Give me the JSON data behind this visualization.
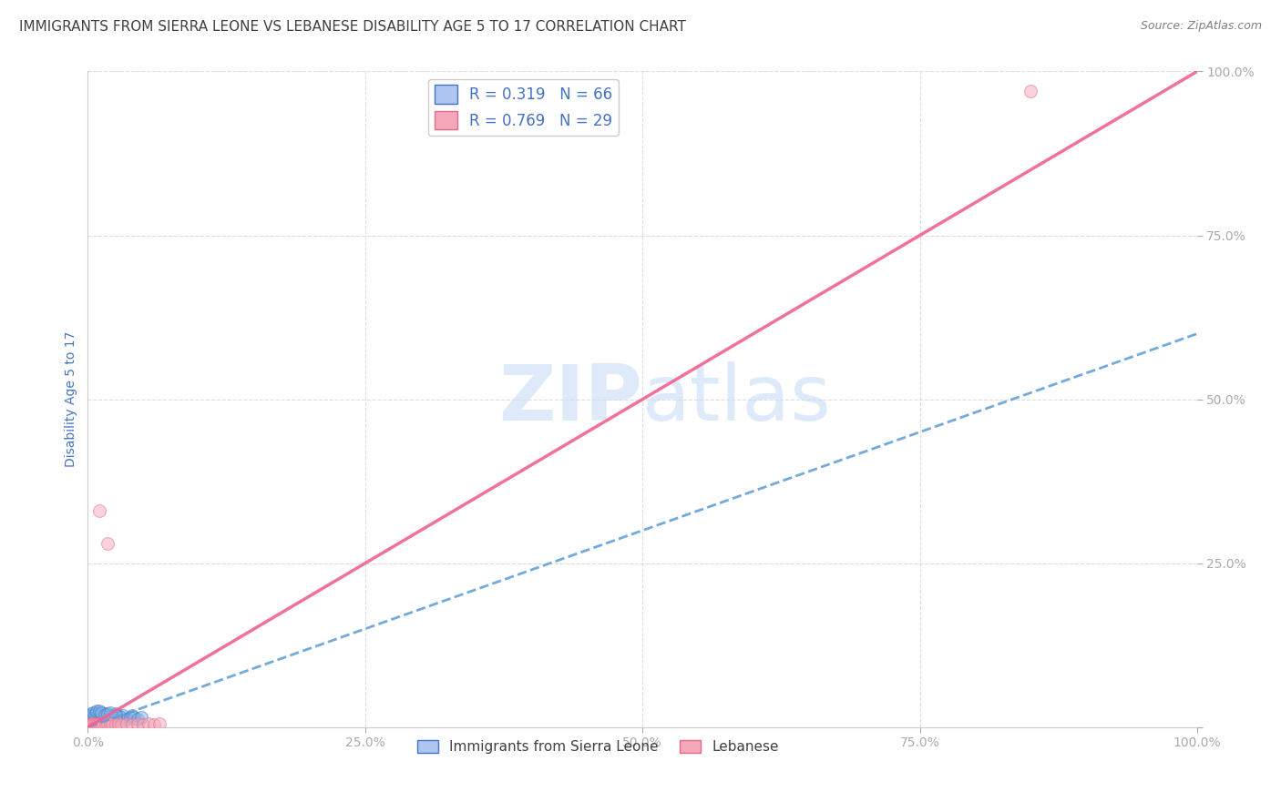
{
  "title": "IMMIGRANTS FROM SIERRA LEONE VS LEBANESE DISABILITY AGE 5 TO 17 CORRELATION CHART",
  "source": "Source: ZipAtlas.com",
  "ylabel": "Disability Age 5 to 17",
  "xlim": [
    0,
    1.0
  ],
  "ylim": [
    0,
    1.0
  ],
  "xticks": [
    0.0,
    0.25,
    0.5,
    0.75,
    1.0
  ],
  "yticks": [
    0.0,
    0.25,
    0.5,
    0.75,
    1.0
  ],
  "xticklabels": [
    "0.0%",
    "25.0%",
    "50.0%",
    "75.0%",
    "100.0%"
  ],
  "yticklabels": [
    "",
    "25.0%",
    "50.0%",
    "75.0%",
    "100.0%"
  ],
  "watermark": "ZIPatlas",
  "sierra_leone_points": [
    [
      0.001,
      0.005
    ],
    [
      0.001,
      0.008
    ],
    [
      0.001,
      0.012
    ],
    [
      0.001,
      0.015
    ],
    [
      0.002,
      0.003
    ],
    [
      0.002,
      0.008
    ],
    [
      0.002,
      0.012
    ],
    [
      0.002,
      0.018
    ],
    [
      0.003,
      0.005
    ],
    [
      0.003,
      0.01
    ],
    [
      0.003,
      0.015
    ],
    [
      0.003,
      0.02
    ],
    [
      0.004,
      0.008
    ],
    [
      0.004,
      0.012
    ],
    [
      0.004,
      0.018
    ],
    [
      0.005,
      0.005
    ],
    [
      0.005,
      0.01
    ],
    [
      0.005,
      0.015
    ],
    [
      0.006,
      0.008
    ],
    [
      0.006,
      0.012
    ],
    [
      0.006,
      0.018
    ],
    [
      0.007,
      0.01
    ],
    [
      0.007,
      0.015
    ],
    [
      0.007,
      0.02
    ],
    [
      0.008,
      0.008
    ],
    [
      0.008,
      0.015
    ],
    [
      0.008,
      0.022
    ],
    [
      0.009,
      0.01
    ],
    [
      0.009,
      0.018
    ],
    [
      0.01,
      0.005
    ],
    [
      0.01,
      0.012
    ],
    [
      0.01,
      0.02
    ],
    [
      0.012,
      0.008
    ],
    [
      0.012,
      0.015
    ],
    [
      0.013,
      0.012
    ],
    [
      0.013,
      0.018
    ],
    [
      0.015,
      0.01
    ],
    [
      0.015,
      0.02
    ],
    [
      0.016,
      0.008
    ],
    [
      0.016,
      0.015
    ],
    [
      0.018,
      0.012
    ],
    [
      0.018,
      0.018
    ],
    [
      0.02,
      0.01
    ],
    [
      0.02,
      0.015
    ],
    [
      0.022,
      0.012
    ],
    [
      0.022,
      0.018
    ],
    [
      0.025,
      0.015
    ],
    [
      0.025,
      0.02
    ],
    [
      0.028,
      0.012
    ],
    [
      0.028,
      0.018
    ],
    [
      0.03,
      0.015
    ],
    [
      0.032,
      0.018
    ],
    [
      0.035,
      0.012
    ],
    [
      0.038,
      0.015
    ],
    [
      0.04,
      0.018
    ],
    [
      0.042,
      0.015
    ],
    [
      0.045,
      0.012
    ],
    [
      0.048,
      0.015
    ],
    [
      0.005,
      0.022
    ],
    [
      0.008,
      0.025
    ],
    [
      0.01,
      0.025
    ],
    [
      0.012,
      0.022
    ],
    [
      0.015,
      0.018
    ],
    [
      0.018,
      0.02
    ],
    [
      0.02,
      0.022
    ],
    [
      0.025,
      0.018
    ]
  ],
  "lebanese_points": [
    [
      0.001,
      0.003
    ],
    [
      0.002,
      0.005
    ],
    [
      0.003,
      0.004
    ],
    [
      0.004,
      0.006
    ],
    [
      0.005,
      0.004
    ],
    [
      0.006,
      0.005
    ],
    [
      0.007,
      0.003
    ],
    [
      0.008,
      0.005
    ],
    [
      0.009,
      0.004
    ],
    [
      0.01,
      0.005
    ],
    [
      0.012,
      0.004
    ],
    [
      0.014,
      0.005
    ],
    [
      0.016,
      0.004
    ],
    [
      0.018,
      0.005
    ],
    [
      0.02,
      0.004
    ],
    [
      0.022,
      0.005
    ],
    [
      0.025,
      0.004
    ],
    [
      0.028,
      0.005
    ],
    [
      0.03,
      0.004
    ],
    [
      0.035,
      0.005
    ],
    [
      0.04,
      0.004
    ],
    [
      0.045,
      0.005
    ],
    [
      0.05,
      0.004
    ],
    [
      0.055,
      0.005
    ],
    [
      0.06,
      0.004
    ],
    [
      0.065,
      0.005
    ],
    [
      0.018,
      0.28
    ],
    [
      0.01,
      0.33
    ],
    [
      0.85,
      0.97
    ]
  ],
  "sierra_leone_color": "#7eb3e8",
  "sierra_leone_edge": "#4472c4",
  "lebanese_color": "#f4a7b9",
  "lebanese_edge": "#e06c8a",
  "regression_sierra_color": "#5b9bd5",
  "regression_lebanese_color": "#f06292",
  "title_color": "#404040",
  "axis_label_color": "#4472c4",
  "tick_color": "#4472c4",
  "grid_color": "#d0d0d0",
  "background_color": "#ffffff",
  "title_fontsize": 11,
  "axis_label_fontsize": 10,
  "tick_fontsize": 10,
  "legend_fontsize": 12,
  "marker_size": 100,
  "marker_alpha": 0.5,
  "sl_line_x0": 0.0,
  "sl_line_y0": 0.0,
  "sl_line_x1": 1.0,
  "sl_line_y1": 0.6,
  "lb_line_x0": 0.0,
  "lb_line_y0": 0.0,
  "lb_line_x1": 1.0,
  "lb_line_y1": 1.0
}
